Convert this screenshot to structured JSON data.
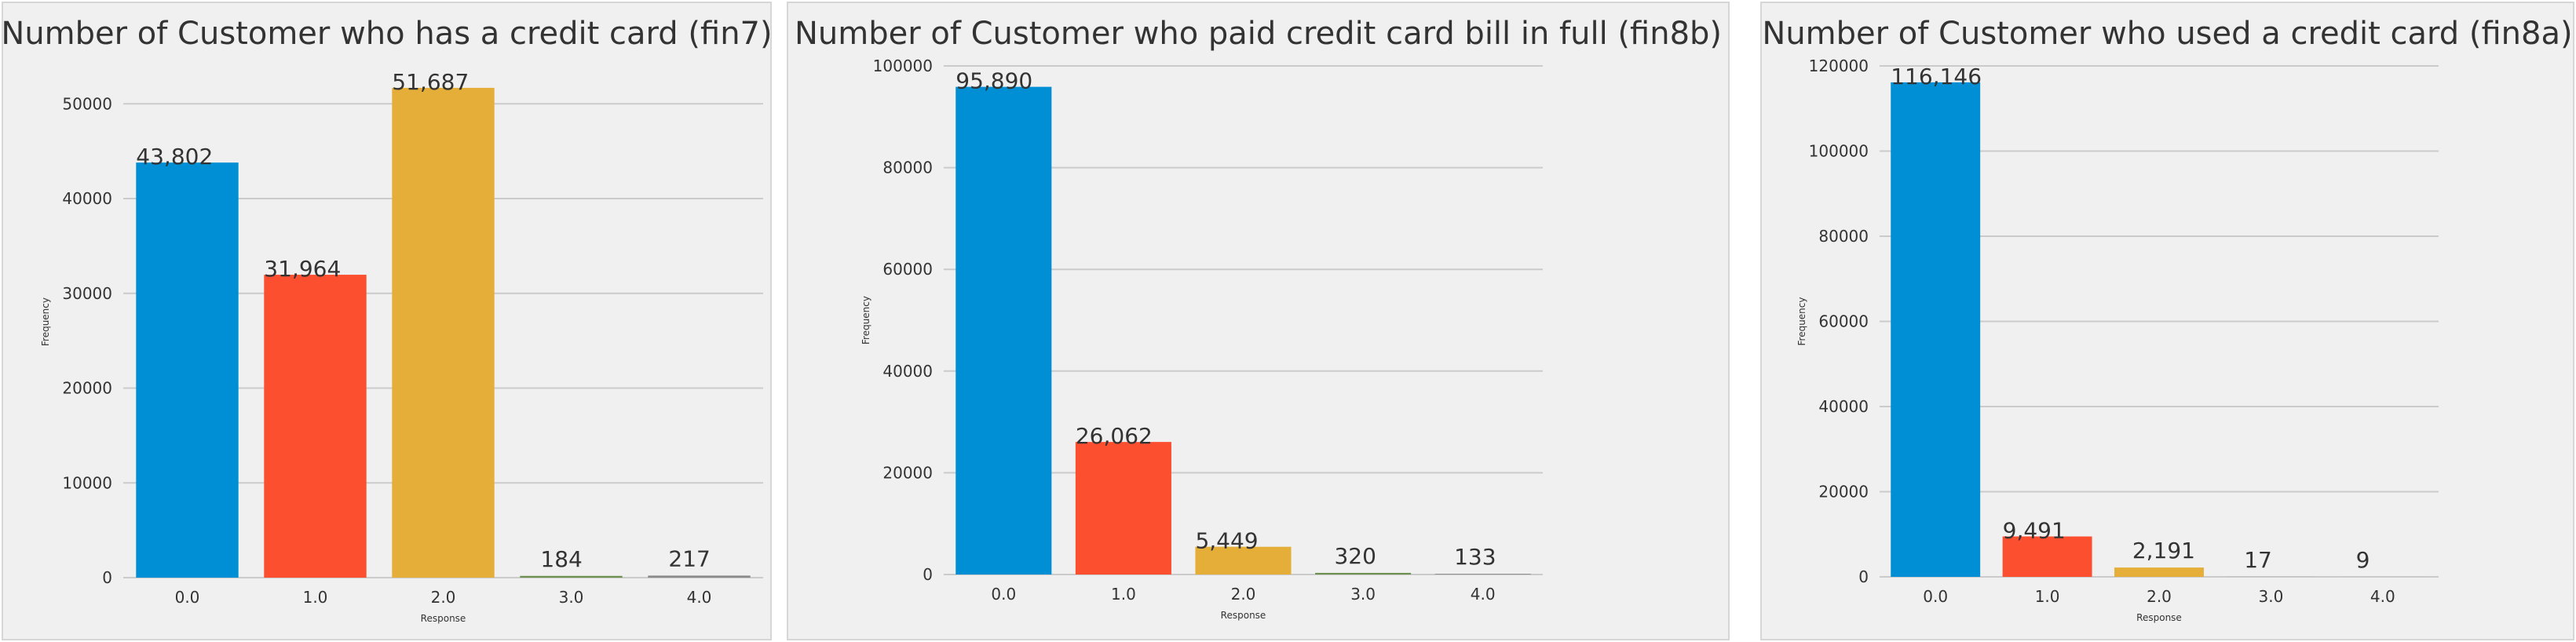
{
  "chart_data": [
    {
      "type": "bar",
      "title": "Number of Customer who has a credit card (fin7)",
      "x_label": "Response",
      "y_label": "Frequency",
      "categories": [
        "0.0",
        "1.0",
        "2.0",
        "3.0",
        "4.0"
      ],
      "values": [
        43802,
        31964,
        51687,
        184,
        217
      ],
      "value_labels": [
        "43,802",
        "31,964",
        "51,687",
        "184",
        "217"
      ],
      "colors": [
        "#008fd5",
        "#fc4f30",
        "#e5ae38",
        "#6d904f",
        "#8b8b8b"
      ],
      "ylim": [
        0,
        54000
      ],
      "yticks": [
        0,
        10000,
        20000,
        30000,
        40000,
        50000
      ],
      "grid": true
    },
    {
      "type": "bar",
      "title": "Number of Customer who paid credit card bill in full (fin8b)",
      "x_label": "Response",
      "y_label": "Frequency",
      "categories": [
        "0.0",
        "1.0",
        "2.0",
        "3.0",
        "4.0"
      ],
      "values": [
        95890,
        26062,
        5449,
        320,
        133
      ],
      "value_labels": [
        "95,890",
        "26,062",
        "5,449",
        "320",
        "133"
      ],
      "colors": [
        "#008fd5",
        "#fc4f30",
        "#e5ae38",
        "#6d904f",
        "#8b8b8b"
      ],
      "ylim": [
        0,
        100000
      ],
      "yticks": [
        0,
        20000,
        40000,
        60000,
        80000,
        100000
      ],
      "grid": true
    },
    {
      "type": "bar",
      "title": "Number of Customer who used a credit card (fin8a)",
      "x_label": "Response",
      "y_label": "Frequency",
      "categories": [
        "0.0",
        "1.0",
        "2.0",
        "3.0",
        "4.0"
      ],
      "values": [
        116146,
        9491,
        2191,
        17,
        9
      ],
      "value_labels": [
        "116,146",
        "9,491",
        "2,191",
        "17",
        "9"
      ],
      "colors": [
        "#008fd5",
        "#fc4f30",
        "#e5ae38",
        "#6d904f",
        "#8b8b8b"
      ],
      "ylim": [
        0,
        120000
      ],
      "yticks": [
        0,
        20000,
        40000,
        60000,
        80000,
        100000,
        120000
      ],
      "grid": true
    }
  ]
}
